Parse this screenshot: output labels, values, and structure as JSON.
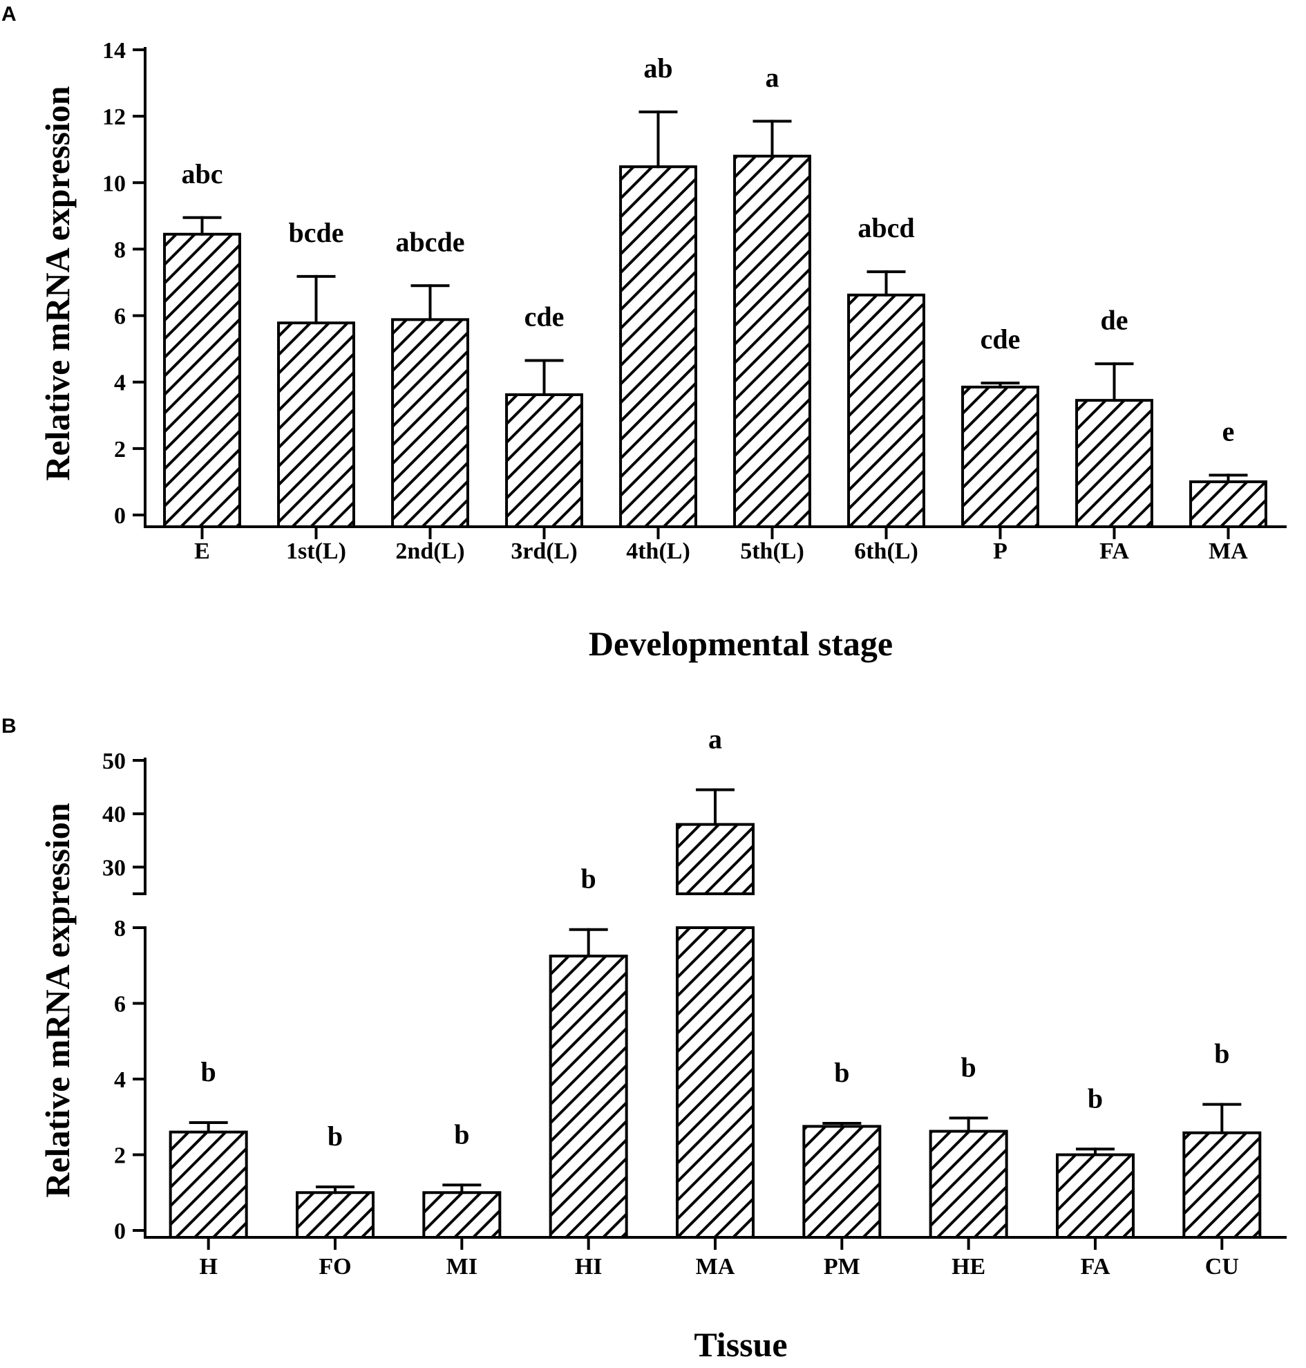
{
  "chart_data": [
    {
      "panel": "A",
      "type": "bar",
      "xlabel": "Developmental stage",
      "ylabel": "Relative mRNA expression",
      "ylim": [
        0,
        14
      ],
      "yticks": [
        0,
        2,
        4,
        6,
        8,
        10,
        12,
        14
      ],
      "categories": [
        "E",
        "1st(L)",
        "2nd(L)",
        "3rd(L)",
        "4th(L)",
        "5th(L)",
        "6th(L)",
        "P",
        "FA",
        "MA"
      ],
      "values": [
        8.45,
        5.78,
        5.88,
        3.62,
        10.48,
        10.8,
        6.62,
        3.85,
        3.45,
        1.0
      ],
      "errors": [
        0.5,
        1.4,
        1.02,
        1.03,
        1.65,
        1.05,
        0.7,
        0.12,
        1.1,
        0.2
      ],
      "significance": [
        "abc",
        "bcde",
        "abcde",
        "cde",
        "ab",
        "a",
        "abcd",
        "cde",
        "de",
        "e"
      ],
      "fill": "diagonal hatch",
      "grid": false
    },
    {
      "panel": "B",
      "type": "bar",
      "xlabel": "Tissue",
      "ylabel": "Relative mRNA expression",
      "axis_break": [
        8,
        25
      ],
      "ylim_lower": [
        0,
        8
      ],
      "ylim_upper": [
        25,
        50
      ],
      "yticks_lower": [
        0,
        2,
        4,
        6,
        8
      ],
      "yticks_upper": [
        30,
        40,
        50
      ],
      "categories": [
        "H",
        "FO",
        "MI",
        "HI",
        "MA",
        "PM",
        "HE",
        "FA",
        "CU"
      ],
      "values": [
        2.6,
        1.0,
        1.0,
        7.25,
        38.0,
        2.75,
        2.62,
        2.0,
        2.58
      ],
      "errors": [
        0.25,
        0.15,
        0.2,
        0.7,
        6.5,
        0.08,
        0.35,
        0.15,
        0.75
      ],
      "significance": [
        "b",
        "b",
        "b",
        "b",
        "a",
        "b",
        "b",
        "b",
        "b"
      ],
      "fill": "diagonal hatch",
      "grid": false
    }
  ],
  "colors": {
    "ink": "#000000",
    "background": "#ffffff"
  }
}
